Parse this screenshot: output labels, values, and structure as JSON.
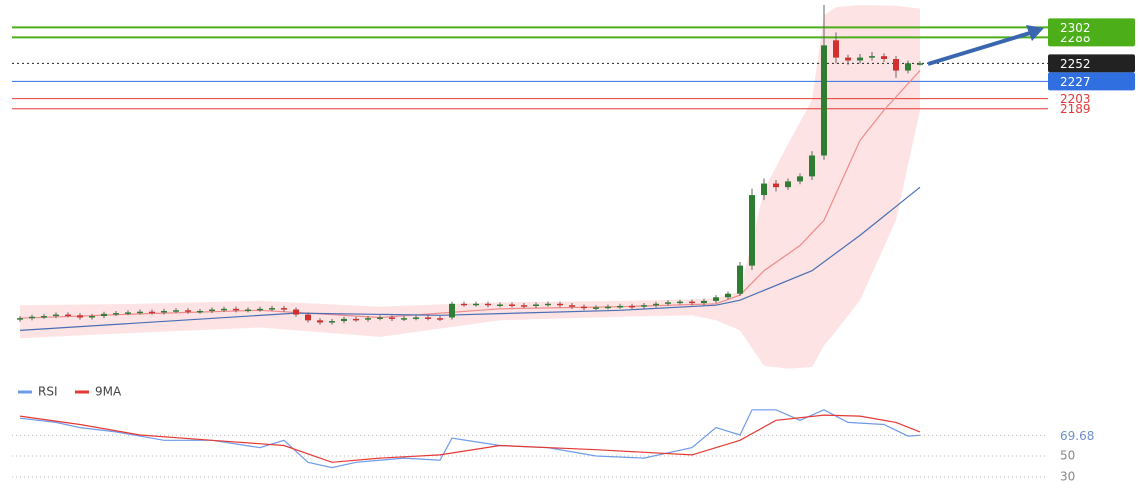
{
  "chart_data": [
    {
      "type": "candlestick",
      "ylim": [
        1826,
        2340
      ],
      "up_color": "#2e7d32",
      "down_color": "#d32f2f",
      "open": [
        1896,
        1898,
        1900,
        1901,
        1903,
        1902,
        1899,
        1901,
        1904,
        1905,
        1906,
        1907,
        1906,
        1908,
        1909,
        1907,
        1908,
        1910,
        1911,
        1909,
        1910,
        1911,
        1912,
        1910,
        1903,
        1895,
        1892,
        1894,
        1897,
        1896,
        1898,
        1899,
        1897,
        1898,
        1899,
        1898,
        1899,
        1918,
        1917,
        1918,
        1916,
        1917,
        1916,
        1915,
        1917,
        1918,
        1916,
        1914,
        1912,
        1913,
        1914,
        1915,
        1914,
        1916,
        1918,
        1920,
        1921,
        1919,
        1922,
        1927,
        1932,
        1971,
        2069,
        2085,
        2080,
        2088,
        2095,
        2124,
        2284,
        2260,
        2256,
        2260,
        2262,
        2258,
        2242,
        2252
      ],
      "high": [
        1901,
        1903,
        1904,
        1906,
        1906,
        1905,
        1904,
        1907,
        1908,
        1909,
        1910,
        1910,
        1911,
        1912,
        1912,
        1911,
        1913,
        1914,
        1914,
        1913,
        1914,
        1915,
        1915,
        1913,
        1906,
        1898,
        1897,
        1900,
        1900,
        1901,
        1902,
        1902,
        1901,
        1902,
        1902,
        1901,
        1921,
        1921,
        1921,
        1921,
        1920,
        1920,
        1919,
        1920,
        1921,
        1921,
        1919,
        1917,
        1916,
        1917,
        1918,
        1918,
        1919,
        1921,
        1923,
        1924,
        1924,
        1925,
        1930,
        1935,
        1976,
        2078,
        2092,
        2090,
        2092,
        2099,
        2130,
        2333,
        2295,
        2264,
        2265,
        2268,
        2266,
        2262,
        2256,
        2255
      ],
      "low": [
        1893,
        1895,
        1897,
        1898,
        1899,
        1896,
        1896,
        1898,
        1901,
        1902,
        1903,
        1903,
        1903,
        1905,
        1904,
        1904,
        1905,
        1907,
        1906,
        1906,
        1907,
        1908,
        1907,
        1900,
        1892,
        1889,
        1889,
        1891,
        1893,
        1893,
        1895,
        1894,
        1894,
        1895,
        1895,
        1894,
        1896,
        1914,
        1914,
        1913,
        1913,
        1913,
        1912,
        1912,
        1914,
        1913,
        1911,
        1909,
        1909,
        1910,
        1911,
        1911,
        1911,
        1913,
        1915,
        1917,
        1916,
        1916,
        1919,
        1924,
        1929,
        1965,
        2062,
        2074,
        2076,
        2084,
        2090,
        2118,
        2252,
        2250,
        2252,
        2256,
        2254,
        2232,
        2238,
        2249
      ],
      "close": [
        1898,
        1900,
        1901,
        1903,
        1902,
        1899,
        1901,
        1904,
        1905,
        1906,
        1907,
        1906,
        1908,
        1909,
        1907,
        1908,
        1910,
        1911,
        1909,
        1910,
        1911,
        1912,
        1910,
        1903,
        1895,
        1892,
        1894,
        1897,
        1896,
        1898,
        1899,
        1897,
        1898,
        1899,
        1898,
        1897,
        1918,
        1917,
        1918,
        1916,
        1917,
        1916,
        1915,
        1917,
        1918,
        1916,
        1914,
        1912,
        1913,
        1914,
        1915,
        1914,
        1916,
        1918,
        1920,
        1921,
        1919,
        1922,
        1927,
        1932,
        1971,
        2069,
        2085,
        2080,
        2088,
        2095,
        2124,
        2277,
        2260,
        2256,
        2260,
        2262,
        2258,
        2242,
        2252,
        2252
      ],
      "band": {
        "color": "#fde3e3",
        "x": [
          0,
          10,
          20,
          30,
          40,
          50,
          56,
          58,
          60,
          62,
          64,
          66,
          67,
          68,
          70,
          73,
          75
        ],
        "upper": [
          1916,
          1918,
          1922,
          1914,
          1920,
          1922,
          1924,
          1926,
          1935,
          2076,
          2140,
          2201,
          2319,
          2330,
          2333,
          2332,
          2328
        ],
        "lower": [
          1870,
          1878,
          1885,
          1872,
          1895,
          1900,
          1902,
          1895,
          1881,
          1832,
          1828,
          1830,
          1860,
          1880,
          1923,
          2034,
          2187
        ]
      },
      "lines": [
        {
          "color": "#f08a8a",
          "x": [
            0,
            10,
            20,
            30,
            40,
            50,
            58,
            60,
            62,
            65,
            67,
            70,
            72,
            75
          ],
          "values": [
            1898,
            1904,
            1909,
            1899,
            1911,
            1914,
            1918,
            1930,
            1964,
            1999,
            2034,
            2145,
            2187,
            2242
          ]
        },
        {
          "color": "#4a6fb5",
          "x": [
            0,
            23,
            35,
            50,
            58,
            60,
            66,
            70,
            75
          ],
          "values": [
            1881,
            1905,
            1902,
            1909,
            1916,
            1923,
            1964,
            2013,
            2080
          ]
        }
      ],
      "levels": [
        {
          "value": 2288,
          "color": "#4caf1a",
          "style": "solid",
          "boxed": true
        },
        {
          "value": 2302,
          "color": "#4caf1a",
          "style": "solid",
          "boxed": true
        },
        {
          "value": 2252,
          "color": "#222222",
          "style": "dotted",
          "boxed": true
        },
        {
          "value": 2227,
          "color": "#2f6fe0",
          "style": "solid",
          "boxed": true
        },
        {
          "value": 2203,
          "color": "#e53935",
          "style": "solid",
          "boxed": false
        },
        {
          "value": 2189,
          "color": "#e53935",
          "style": "solid",
          "boxed": false
        }
      ]
    },
    {
      "type": "line",
      "ylim": [
        20,
        100
      ],
      "yticks": [
        30,
        50
      ],
      "current_value": 69.68,
      "current_color": "#6f8fd0",
      "series": [
        {
          "name": "RSI",
          "color": "#6f9be8",
          "x": [
            0,
            3,
            5,
            8,
            12,
            16,
            20,
            22,
            24,
            26,
            28,
            32,
            35,
            36,
            40,
            44,
            48,
            52,
            56,
            58,
            60,
            61,
            63,
            65,
            67,
            69,
            72,
            74,
            75
          ],
          "values": [
            86,
            82,
            77,
            73,
            65,
            65,
            58,
            65,
            44,
            39,
            44,
            48,
            46,
            67,
            60,
            58,
            50,
            48,
            58,
            77,
            70,
            94,
            94,
            84,
            94,
            82,
            80,
            69,
            69.68
          ]
        },
        {
          "name": "9MA",
          "color": "#e53935",
          "x": [
            0,
            5,
            10,
            16,
            22,
            26,
            30,
            35,
            40,
            48,
            56,
            60,
            63,
            67,
            70,
            73,
            75
          ],
          "values": [
            88,
            80,
            70,
            65,
            60,
            44,
            48,
            51,
            60,
            56,
            51,
            65,
            84,
            89,
            88,
            82,
            73
          ]
        }
      ]
    }
  ]
}
